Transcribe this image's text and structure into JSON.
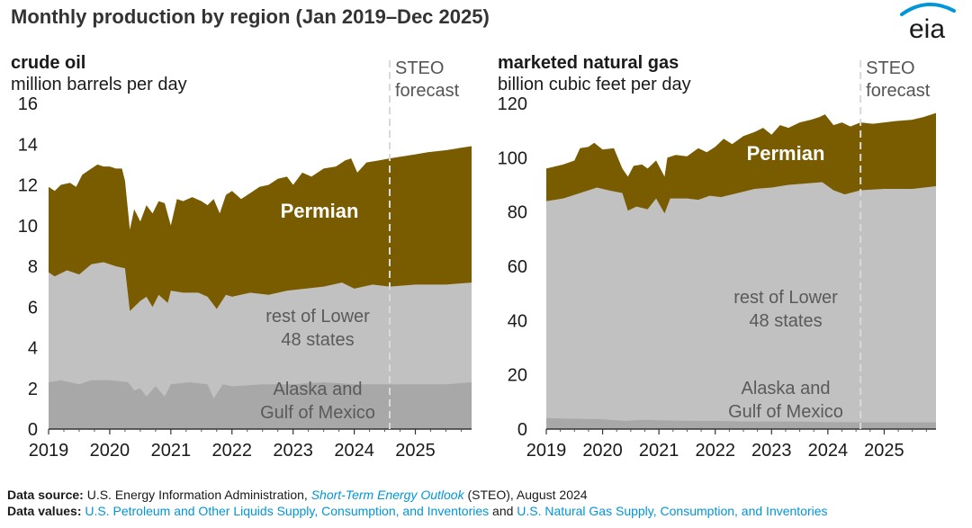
{
  "title": "Monthly production by region (Jan 2019–Dec 2025)",
  "logo_text": "eia",
  "colors": {
    "permian": "#7a5c00",
    "rest": "#c1c1c1",
    "alaska": "#a8a8a8",
    "forecast_line": "#d9d9d9",
    "label_dark": "#5a5a5a",
    "link": "#0096d7",
    "logo_swoosh": "#0096d7"
  },
  "chart_data": [
    {
      "type": "area",
      "panel_title": "crude oil",
      "unit": "million barrels per day",
      "forecast_label": [
        "STEO",
        "forecast"
      ],
      "forecast_start": 2024.58,
      "x_range": [
        2019.0,
        2025.92
      ],
      "ylim": [
        0,
        16
      ],
      "y_ticks": [
        0,
        2,
        4,
        6,
        8,
        10,
        12,
        14,
        16
      ],
      "x_ticks": [
        2019,
        2020,
        2021,
        2022,
        2023,
        2024,
        2025
      ],
      "series_labels": {
        "permian": "Permian",
        "rest": [
          "rest of Lower",
          "48 states"
        ],
        "alaska": [
          "Alaska and",
          "Gulf of Mexico"
        ]
      },
      "stack_order": [
        "alaska",
        "rest",
        "permian"
      ],
      "series_points": {
        "alaska": [
          [
            2019.0,
            2.3
          ],
          [
            2019.2,
            2.4
          ],
          [
            2019.5,
            2.2
          ],
          [
            2019.7,
            2.4
          ],
          [
            2020.0,
            2.4
          ],
          [
            2020.3,
            2.3
          ],
          [
            2020.4,
            1.9
          ],
          [
            2020.5,
            2.0
          ],
          [
            2020.6,
            1.6
          ],
          [
            2020.75,
            2.1
          ],
          [
            2020.9,
            1.6
          ],
          [
            2021.0,
            2.2
          ],
          [
            2021.3,
            2.3
          ],
          [
            2021.6,
            2.2
          ],
          [
            2021.7,
            1.5
          ],
          [
            2021.85,
            2.2
          ],
          [
            2022.0,
            2.1
          ],
          [
            2022.5,
            2.2
          ],
          [
            2023.0,
            2.2
          ],
          [
            2023.5,
            2.3
          ],
          [
            2024.0,
            2.2
          ],
          [
            2024.5,
            2.2
          ],
          [
            2025.0,
            2.2
          ],
          [
            2025.5,
            2.2
          ],
          [
            2025.92,
            2.3
          ]
        ],
        "rest_total": [
          [
            2019.0,
            7.7
          ],
          [
            2019.1,
            7.5
          ],
          [
            2019.3,
            7.8
          ],
          [
            2019.5,
            7.6
          ],
          [
            2019.7,
            8.1
          ],
          [
            2019.9,
            8.2
          ],
          [
            2020.1,
            8.0
          ],
          [
            2020.25,
            7.9
          ],
          [
            2020.33,
            5.8
          ],
          [
            2020.5,
            6.3
          ],
          [
            2020.6,
            6.5
          ],
          [
            2020.7,
            6.0
          ],
          [
            2020.8,
            6.6
          ],
          [
            2020.95,
            6.2
          ],
          [
            2021.0,
            6.8
          ],
          [
            2021.2,
            6.7
          ],
          [
            2021.45,
            6.7
          ],
          [
            2021.6,
            6.5
          ],
          [
            2021.75,
            5.9
          ],
          [
            2021.9,
            6.6
          ],
          [
            2022.0,
            6.5
          ],
          [
            2022.3,
            6.7
          ],
          [
            2022.6,
            6.6
          ],
          [
            2022.9,
            6.8
          ],
          [
            2023.2,
            6.9
          ],
          [
            2023.5,
            7.0
          ],
          [
            2023.8,
            7.2
          ],
          [
            2024.0,
            6.9
          ],
          [
            2024.3,
            7.1
          ],
          [
            2024.58,
            7.0
          ],
          [
            2025.0,
            7.1
          ],
          [
            2025.5,
            7.1
          ],
          [
            2025.92,
            7.2
          ]
        ],
        "permian_total": [
          [
            2019.0,
            11.9
          ],
          [
            2019.1,
            11.7
          ],
          [
            2019.2,
            12.0
          ],
          [
            2019.35,
            12.1
          ],
          [
            2019.45,
            11.9
          ],
          [
            2019.55,
            12.5
          ],
          [
            2019.7,
            12.8
          ],
          [
            2019.8,
            13.0
          ],
          [
            2019.9,
            12.9
          ],
          [
            2020.0,
            12.9
          ],
          [
            2020.1,
            12.8
          ],
          [
            2020.2,
            12.8
          ],
          [
            2020.25,
            12.2
          ],
          [
            2020.33,
            9.8
          ],
          [
            2020.4,
            10.8
          ],
          [
            2020.5,
            10.2
          ],
          [
            2020.6,
            11.0
          ],
          [
            2020.7,
            10.6
          ],
          [
            2020.8,
            11.2
          ],
          [
            2020.9,
            11.1
          ],
          [
            2021.0,
            10.0
          ],
          [
            2021.1,
            11.3
          ],
          [
            2021.2,
            11.2
          ],
          [
            2021.35,
            11.4
          ],
          [
            2021.5,
            11.2
          ],
          [
            2021.6,
            11.0
          ],
          [
            2021.7,
            11.3
          ],
          [
            2021.8,
            10.6
          ],
          [
            2021.9,
            11.5
          ],
          [
            2022.0,
            11.7
          ],
          [
            2022.15,
            11.3
          ],
          [
            2022.3,
            11.6
          ],
          [
            2022.45,
            11.9
          ],
          [
            2022.6,
            12.0
          ],
          [
            2022.75,
            12.3
          ],
          [
            2022.9,
            12.4
          ],
          [
            2023.0,
            12.0
          ],
          [
            2023.15,
            12.6
          ],
          [
            2023.3,
            12.4
          ],
          [
            2023.5,
            12.8
          ],
          [
            2023.7,
            12.9
          ],
          [
            2023.85,
            13.2
          ],
          [
            2023.95,
            13.3
          ],
          [
            2024.05,
            12.6
          ],
          [
            2024.2,
            13.1
          ],
          [
            2024.4,
            13.2
          ],
          [
            2024.58,
            13.3
          ],
          [
            2024.8,
            13.4
          ],
          [
            2025.0,
            13.5
          ],
          [
            2025.2,
            13.6
          ],
          [
            2025.5,
            13.7
          ],
          [
            2025.7,
            13.8
          ],
          [
            2025.92,
            13.9
          ]
        ]
      }
    },
    {
      "type": "area",
      "panel_title": "marketed natural gas",
      "unit": "billion cubic feet per day",
      "forecast_label": [
        "STEO",
        "forecast"
      ],
      "forecast_start": 2024.58,
      "x_range": [
        2019.0,
        2025.92
      ],
      "ylim": [
        0,
        120
      ],
      "y_ticks": [
        0,
        20,
        40,
        60,
        80,
        100,
        120
      ],
      "x_ticks": [
        2019,
        2020,
        2021,
        2022,
        2023,
        2024,
        2025
      ],
      "series_labels": {
        "permian": "Permian",
        "rest": [
          "rest of Lower",
          "48 states"
        ],
        "alaska": [
          "Alaska and",
          "Gulf of Mexico"
        ]
      },
      "stack_order": [
        "alaska",
        "rest",
        "permian"
      ],
      "series_points": {
        "alaska": [
          [
            2019.0,
            4.0
          ],
          [
            2019.5,
            3.8
          ],
          [
            2020.0,
            3.6
          ],
          [
            2020.4,
            3.0
          ],
          [
            2020.7,
            3.4
          ],
          [
            2021.0,
            3.2
          ],
          [
            2021.5,
            3.0
          ],
          [
            2022.0,
            3.0
          ],
          [
            2022.5,
            2.8
          ],
          [
            2023.0,
            2.8
          ],
          [
            2023.5,
            2.8
          ],
          [
            2024.0,
            2.6
          ],
          [
            2024.58,
            2.5
          ],
          [
            2025.0,
            2.5
          ],
          [
            2025.5,
            2.5
          ],
          [
            2025.92,
            2.5
          ]
        ],
        "rest_total": [
          [
            2019.0,
            84.0
          ],
          [
            2019.3,
            85.0
          ],
          [
            2019.6,
            87.0
          ],
          [
            2019.9,
            89.0
          ],
          [
            2020.1,
            88.0
          ],
          [
            2020.35,
            87.0
          ],
          [
            2020.45,
            80.5
          ],
          [
            2020.6,
            82.0
          ],
          [
            2020.8,
            81.0
          ],
          [
            2020.95,
            85.0
          ],
          [
            2021.1,
            79.5
          ],
          [
            2021.2,
            85.0
          ],
          [
            2021.5,
            85.0
          ],
          [
            2021.7,
            84.5
          ],
          [
            2021.9,
            86.0
          ],
          [
            2022.1,
            85.5
          ],
          [
            2022.4,
            87.0
          ],
          [
            2022.7,
            88.5
          ],
          [
            2023.0,
            89.0
          ],
          [
            2023.3,
            90.0
          ],
          [
            2023.6,
            90.5
          ],
          [
            2023.9,
            91.0
          ],
          [
            2024.1,
            88.0
          ],
          [
            2024.3,
            86.5
          ],
          [
            2024.58,
            88.0
          ],
          [
            2025.0,
            88.5
          ],
          [
            2025.5,
            88.5
          ],
          [
            2025.92,
            89.5
          ]
        ],
        "permian_total": [
          [
            2019.0,
            96.0
          ],
          [
            2019.3,
            97.5
          ],
          [
            2019.5,
            99.0
          ],
          [
            2019.6,
            103.5
          ],
          [
            2019.75,
            104.0
          ],
          [
            2019.85,
            105.5
          ],
          [
            2020.0,
            103.0
          ],
          [
            2020.2,
            103.5
          ],
          [
            2020.35,
            96.0
          ],
          [
            2020.45,
            93.0
          ],
          [
            2020.55,
            97.0
          ],
          [
            2020.7,
            97.5
          ],
          [
            2020.8,
            96.0
          ],
          [
            2020.95,
            99.0
          ],
          [
            2021.1,
            93.0
          ],
          [
            2021.15,
            100.0
          ],
          [
            2021.3,
            101.0
          ],
          [
            2021.5,
            100.5
          ],
          [
            2021.7,
            103.5
          ],
          [
            2021.85,
            102.0
          ],
          [
            2022.0,
            104.0
          ],
          [
            2022.15,
            107.0
          ],
          [
            2022.3,
            105.0
          ],
          [
            2022.5,
            108.0
          ],
          [
            2022.7,
            109.5
          ],
          [
            2022.85,
            111.0
          ],
          [
            2023.0,
            108.5
          ],
          [
            2023.15,
            112.0
          ],
          [
            2023.3,
            111.0
          ],
          [
            2023.5,
            113.0
          ],
          [
            2023.7,
            114.0
          ],
          [
            2023.85,
            115.0
          ],
          [
            2023.95,
            116.0
          ],
          [
            2024.1,
            112.0
          ],
          [
            2024.25,
            113.0
          ],
          [
            2024.4,
            111.5
          ],
          [
            2024.58,
            113.0
          ],
          [
            2024.8,
            112.5
          ],
          [
            2025.0,
            113.0
          ],
          [
            2025.2,
            113.5
          ],
          [
            2025.5,
            114.0
          ],
          [
            2025.7,
            115.0
          ],
          [
            2025.92,
            116.5
          ]
        ]
      }
    }
  ],
  "footer": {
    "source_label": "Data source:",
    "source_text_1": " U.S. Energy Information Administration, ",
    "source_link": "Short-Term Energy Outlook",
    "source_text_2": " (STEO), August 2024",
    "values_label": "Data values:",
    "values_link_1": "U.S. Petroleum and Other Liquids Supply, Consumption, and Inventories",
    "values_and": " and ",
    "values_link_2": "U.S. Natural Gas Supply, Consumption, and Inventories"
  }
}
